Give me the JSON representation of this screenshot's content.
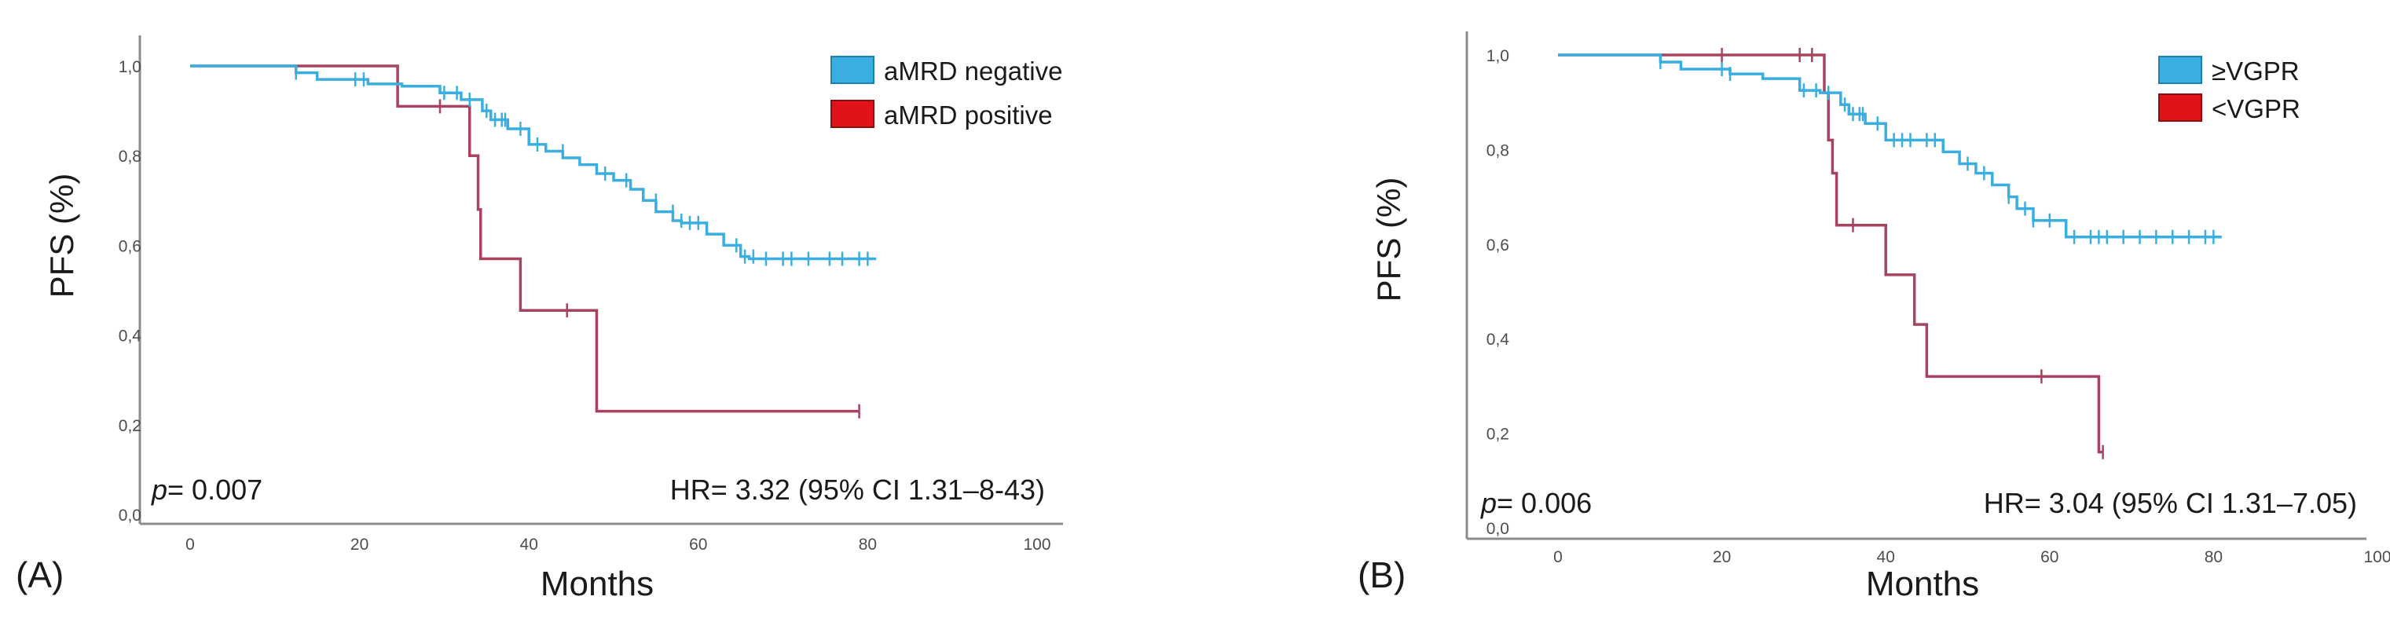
{
  "colors": {
    "negative": "#3aaee0",
    "positive": "#a8435f",
    "axis": "#8c8c8c",
    "text": "#1a1a1a",
    "tick": "#4d4d4d"
  },
  "chart_data": [
    {
      "type": "line",
      "panel_label": "(A)",
      "xlabel": "Months",
      "ylabel": "PFS (%)",
      "xlim": [
        0,
        100
      ],
      "ylim": [
        0,
        1
      ],
      "x_ticks": [
        "0",
        "20",
        "40",
        "60",
        "80",
        "100"
      ],
      "y_ticks": [
        "0,0",
        "0,2",
        "0,4",
        "0,6",
        "0,8",
        "1,0"
      ],
      "legend": {
        "position": "top-right"
      },
      "annotation_p": {
        "italic": "p",
        "rest": "= 0.007"
      },
      "annotation_hr": "HR= 3.32 (95% CI 1.31–8-43)",
      "series": [
        {
          "name": "aMRD negative",
          "step_x": [
            0,
            12.5,
            15,
            21,
            25,
            29.5,
            32,
            34.5,
            35.5,
            37.5,
            40,
            42,
            44,
            46,
            48,
            50,
            52,
            53.5,
            55,
            57,
            58,
            61,
            63,
            65,
            66,
            81
          ],
          "step_y": [
            1.0,
            0.985,
            0.97,
            0.96,
            0.955,
            0.94,
            0.925,
            0.9,
            0.88,
            0.86,
            0.825,
            0.81,
            0.795,
            0.78,
            0.76,
            0.745,
            0.725,
            0.7,
            0.675,
            0.655,
            0.65,
            0.625,
            0.6,
            0.575,
            0.57,
            0.57
          ],
          "censor_x": [
            12.5,
            19.5,
            20.5,
            30,
            31.5,
            33,
            35,
            36,
            36.8,
            37.2,
            39,
            41,
            44,
            49,
            51.5,
            55,
            57,
            58,
            59,
            60,
            64.5,
            65.5,
            66.5,
            68,
            70,
            71,
            73,
            75.5,
            77,
            79,
            80
          ],
          "censor_y": [
            0.985,
            0.97,
            0.97,
            0.94,
            0.94,
            0.925,
            0.9,
            0.88,
            0.88,
            0.88,
            0.86,
            0.825,
            0.81,
            0.76,
            0.745,
            0.7,
            0.675,
            0.655,
            0.65,
            0.65,
            0.6,
            0.575,
            0.575,
            0.57,
            0.57,
            0.57,
            0.57,
            0.57,
            0.57,
            0.57,
            0.57
          ]
        },
        {
          "name": "aMRD positive",
          "step_x": [
            0,
            24.5,
            33,
            34,
            34.3,
            39,
            48,
            79
          ],
          "step_y": [
            1.0,
            0.91,
            0.8,
            0.68,
            0.57,
            0.455,
            0.23,
            0.23
          ],
          "censor_x": [
            29.5,
            44.5,
            79
          ],
          "censor_y": [
            0.91,
            0.455,
            0.23
          ]
        }
      ]
    },
    {
      "type": "line",
      "panel_label": "(B)",
      "xlabel": "Months",
      "ylabel": "PFS (%)",
      "xlim": [
        0,
        100
      ],
      "ylim": [
        0,
        1
      ],
      "x_ticks": [
        "0",
        "20",
        "40",
        "60",
        "80",
        "100"
      ],
      "y_ticks": [
        "0,0",
        "0,2",
        "0,4",
        "0,6",
        "0,8",
        "1,0"
      ],
      "legend": {
        "position": "top-right"
      },
      "annotation_p": {
        "italic": "p",
        "rest": "= 0.006"
      },
      "annotation_hr": "HR= 3.04 (95% CI 1.31–7.05)",
      "series": [
        {
          "name": "≥VGPR",
          "step_x": [
            0,
            12.5,
            15,
            21,
            25,
            29.5,
            32,
            34.5,
            35.5,
            37.5,
            40,
            47,
            49,
            51,
            53,
            55,
            56,
            58,
            62,
            81
          ],
          "step_y": [
            1.0,
            0.985,
            0.97,
            0.96,
            0.95,
            0.925,
            0.92,
            0.895,
            0.875,
            0.855,
            0.82,
            0.795,
            0.77,
            0.75,
            0.725,
            0.7,
            0.675,
            0.65,
            0.615,
            0.615
          ],
          "censor_x": [
            12.5,
            20,
            21,
            30,
            31.5,
            33,
            35,
            36,
            36.8,
            37.2,
            39,
            41,
            42,
            43,
            45,
            46,
            50,
            52,
            55,
            57,
            58,
            60,
            63,
            65,
            66,
            67,
            69,
            71,
            73,
            75,
            77,
            79,
            80
          ],
          "censor_y": [
            0.985,
            0.97,
            0.96,
            0.925,
            0.925,
            0.92,
            0.895,
            0.875,
            0.875,
            0.875,
            0.855,
            0.82,
            0.82,
            0.82,
            0.82,
            0.82,
            0.77,
            0.75,
            0.7,
            0.675,
            0.65,
            0.65,
            0.615,
            0.615,
            0.615,
            0.615,
            0.615,
            0.615,
            0.615,
            0.615,
            0.615,
            0.615,
            0.615
          ]
        },
        {
          "name": "<VGPR",
          "step_x": [
            0,
            32.5,
            33,
            33.5,
            34,
            40,
            43.5,
            45,
            66,
            66.5
          ],
          "step_y": [
            1.0,
            0.92,
            0.82,
            0.75,
            0.64,
            0.535,
            0.43,
            0.32,
            0.16,
            0.16
          ],
          "censor_x": [
            20,
            29.5,
            31,
            36,
            59,
            66.5
          ],
          "censor_y": [
            1.0,
            1.0,
            1.0,
            0.64,
            0.32,
            0.16
          ]
        }
      ]
    }
  ]
}
